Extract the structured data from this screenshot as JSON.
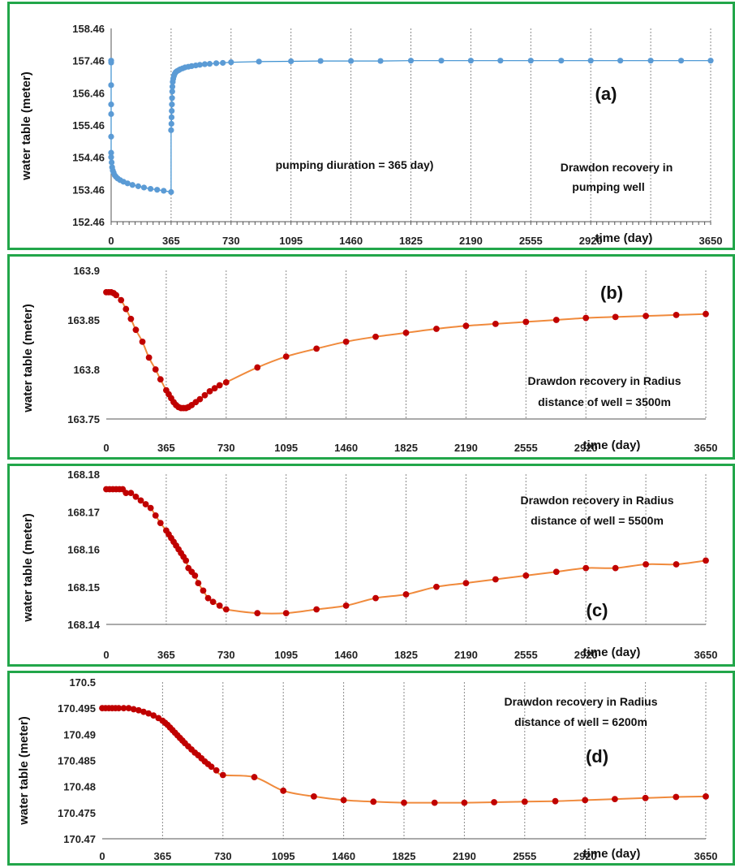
{
  "style": {
    "border": "#22a64a",
    "grid": "#8a8a8a",
    "series_a_color": "#5b9bd5",
    "series_bcd_line": "#f08a3c",
    "series_bcd_marker": "#c00000"
  },
  "x_ticks": [
    "0",
    "365",
    "730",
    "1095",
    "1460",
    "1825",
    "2190",
    "2555",
    "2920",
    "3650"
  ],
  "time_label": "time (day)",
  "chart_data": [
    {
      "type": "scatter",
      "ylabel": "water table (meter)",
      "xlabel": "time (day)",
      "xlim": [
        0,
        3650
      ],
      "ylim": [
        152.46,
        158.46
      ],
      "yticks": [
        "158.46",
        "157.46",
        "156.46",
        "155.46",
        "154.46",
        "153.46",
        "152.46"
      ],
      "panel_label": "(a)",
      "annotations": [
        "pumping diuration  = 365 day)",
        "Drawdon recovery in",
        "pumping well"
      ],
      "series": [
        {
          "x": [
            0,
            0,
            0,
            0,
            0,
            0,
            0,
            0,
            3,
            6,
            10,
            15,
            22,
            30,
            40,
            55,
            75,
            100,
            130,
            165,
            200,
            240,
            280,
            320,
            365,
            365,
            367,
            368,
            369,
            370,
            371,
            372,
            373,
            375,
            378,
            382,
            387,
            393,
            400,
            410,
            420,
            435,
            450,
            470,
            490,
            515,
            540,
            570,
            600,
            640,
            680,
            730,
            900,
            1095,
            1275,
            1460,
            1640,
            1825,
            2010,
            2190,
            2370,
            2555,
            2740,
            2920,
            3100,
            3285,
            3470,
            3650
          ],
          "y": [
            157.46,
            157.4,
            156.7,
            156.1,
            155.8,
            155.1,
            154.6,
            154.46,
            154.3,
            154.15,
            154.05,
            153.98,
            153.9,
            153.85,
            153.8,
            153.75,
            153.7,
            153.65,
            153.6,
            153.56,
            153.52,
            153.48,
            153.45,
            153.42,
            153.38,
            155.3,
            155.5,
            155.7,
            155.9,
            156.1,
            156.3,
            156.5,
            156.65,
            156.8,
            156.9,
            156.98,
            157.05,
            157.1,
            157.13,
            157.16,
            157.19,
            157.22,
            157.25,
            157.27,
            157.29,
            157.31,
            157.33,
            157.35,
            157.36,
            157.38,
            157.39,
            157.41,
            157.43,
            157.44,
            157.45,
            157.45,
            157.45,
            157.46,
            157.46,
            157.46,
            157.46,
            157.46,
            157.46,
            157.46,
            157.46,
            157.46,
            157.46,
            157.46
          ]
        }
      ]
    },
    {
      "type": "scatter",
      "ylabel": "water table (meter)",
      "xlabel": "time (day)",
      "xlim": [
        0,
        3650
      ],
      "ylim": [
        163.75,
        163.9
      ],
      "yticks": [
        "163.9",
        "163.85",
        "163.8",
        "163.75"
      ],
      "panel_label": "(b)",
      "annotations": [
        "Drawdon recovery in Radius",
        "distance  of  well = 3500m"
      ],
      "series": [
        {
          "x": [
            0,
            15,
            30,
            45,
            60,
            90,
            120,
            150,
            180,
            220,
            260,
            300,
            330,
            365,
            380,
            395,
            410,
            425,
            440,
            455,
            470,
            485,
            500,
            520,
            545,
            570,
            600,
            630,
            660,
            690,
            730,
            920,
            1095,
            1280,
            1460,
            1640,
            1825,
            2010,
            2190,
            2370,
            2555,
            2740,
            2920,
            3100,
            3285,
            3470,
            3650
          ],
          "y": [
            163.878,
            163.878,
            163.878,
            163.877,
            163.875,
            163.87,
            163.861,
            163.851,
            163.84,
            163.828,
            163.812,
            163.8,
            163.79,
            163.779,
            163.775,
            163.771,
            163.767,
            163.764,
            163.762,
            163.761,
            163.761,
            163.761,
            163.762,
            163.764,
            163.767,
            163.77,
            163.774,
            163.778,
            163.781,
            163.784,
            163.787,
            163.802,
            163.813,
            163.821,
            163.828,
            163.833,
            163.837,
            163.841,
            163.844,
            163.846,
            163.848,
            163.85,
            163.852,
            163.853,
            163.854,
            163.855,
            163.856
          ]
        }
      ]
    },
    {
      "type": "scatter",
      "ylabel": "water table (meter)",
      "xlabel": "time (day)",
      "xlim": [
        0,
        3650
      ],
      "ylim": [
        168.14,
        168.18
      ],
      "yticks": [
        "168.18",
        "168.17",
        "168.16",
        "168.15",
        "168.14"
      ],
      "panel_label": "(c)",
      "annotations": [
        "Drawdon recovery in Radius",
        "distance of  well = 5500m"
      ],
      "series": [
        {
          "x": [
            0,
            20,
            40,
            60,
            80,
            100,
            120,
            150,
            180,
            210,
            240,
            270,
            300,
            330,
            365,
            380,
            395,
            410,
            425,
            440,
            455,
            470,
            485,
            500,
            520,
            540,
            560,
            590,
            620,
            650,
            690,
            730,
            920,
            1095,
            1280,
            1460,
            1640,
            1825,
            2010,
            2190,
            2370,
            2555,
            2740,
            2920,
            3100,
            3285,
            3470,
            3650
          ],
          "y": [
            168.176,
            168.176,
            168.176,
            168.176,
            168.176,
            168.176,
            168.175,
            168.175,
            168.174,
            168.173,
            168.172,
            168.171,
            168.169,
            168.167,
            168.165,
            168.164,
            168.163,
            168.162,
            168.161,
            168.16,
            168.159,
            168.158,
            168.157,
            168.155,
            168.154,
            168.153,
            168.151,
            168.149,
            168.147,
            168.146,
            168.145,
            168.144,
            168.143,
            168.143,
            168.144,
            168.145,
            168.147,
            168.148,
            168.15,
            168.151,
            168.152,
            168.153,
            168.154,
            168.155,
            168.155,
            168.156,
            168.156,
            168.157
          ]
        }
      ]
    },
    {
      "type": "scatter",
      "ylabel": "water table (meter)",
      "xlabel": "time (day)",
      "xlim": [
        0,
        3650
      ],
      "ylim": [
        170.47,
        170.5
      ],
      "yticks": [
        "170.5",
        "170.495",
        "170.49",
        "170.485",
        "170.48",
        "170.475",
        "170.47"
      ],
      "panel_label": "(d)",
      "annotations": [
        "Drawdon recovery in Radius",
        "distance of  well = 6200m"
      ],
      "series": [
        {
          "x": [
            0,
            20,
            40,
            60,
            80,
            100,
            130,
            160,
            190,
            220,
            250,
            280,
            310,
            340,
            365,
            380,
            395,
            410,
            425,
            440,
            455,
            470,
            485,
            500,
            520,
            540,
            560,
            580,
            600,
            620,
            640,
            660,
            690,
            730,
            920,
            1095,
            1280,
            1460,
            1640,
            1825,
            2010,
            2190,
            2370,
            2555,
            2740,
            2920,
            3100,
            3285,
            3470,
            3650
          ],
          "y": [
            170.495,
            170.495,
            170.495,
            170.495,
            170.495,
            170.495,
            170.495,
            170.495,
            170.4948,
            170.4946,
            170.4943,
            170.494,
            170.4936,
            170.4931,
            170.4926,
            170.4922,
            170.4918,
            170.4913,
            170.4908,
            170.4903,
            170.4898,
            170.4893,
            170.4888,
            170.4883,
            170.4877,
            170.4871,
            170.4865,
            170.486,
            170.4854,
            170.4848,
            170.4843,
            170.4838,
            170.4831,
            170.4822,
            170.4818,
            170.4792,
            170.4781,
            170.4774,
            170.4771,
            170.4769,
            170.4769,
            170.4769,
            170.477,
            170.4771,
            170.4772,
            170.4774,
            170.4776,
            170.4778,
            170.478,
            170.4781
          ]
        }
      ]
    }
  ]
}
